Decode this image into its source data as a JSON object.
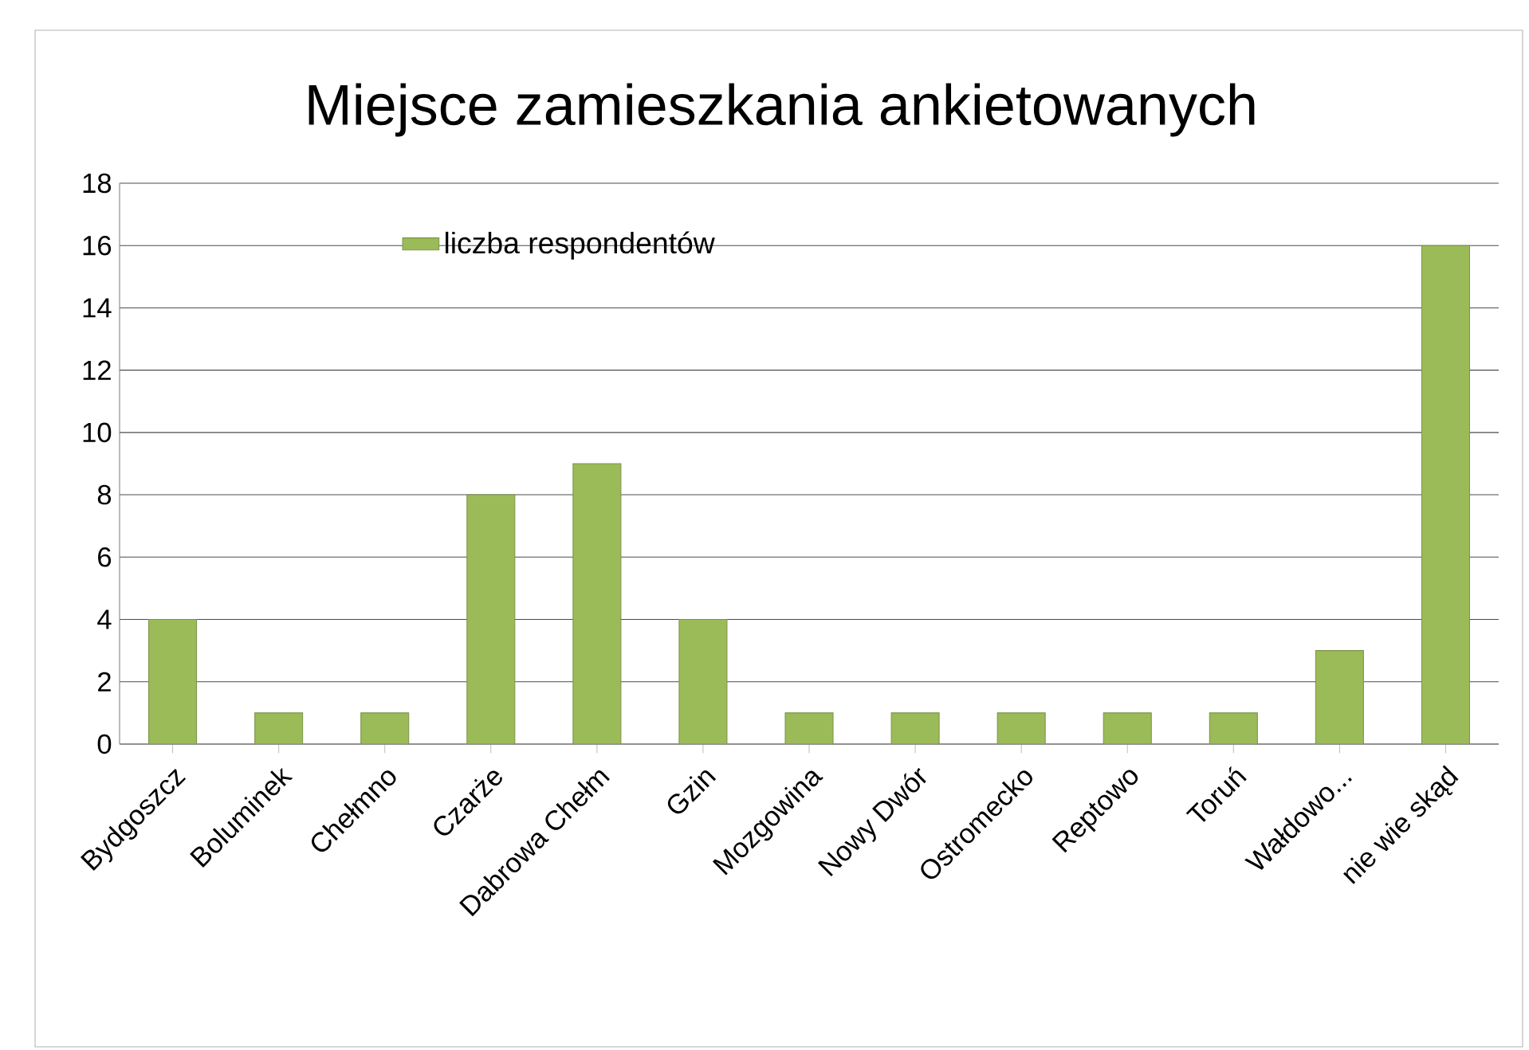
{
  "chart_data": {
    "type": "bar",
    "title": "Miejsce zamieszkania ankietowanych",
    "categories": [
      "Bydgoszcz",
      "Boluminek",
      "Chełmno",
      "Czarże",
      "Dabrowa Chełm",
      "Gzin",
      "Mozgowina",
      "Nowy Dwór",
      "Ostromecko",
      "Reptowo",
      "Toruń",
      "Wałdowo...",
      "nie wie skąd"
    ],
    "series": [
      {
        "name": "liczba respondentów",
        "color": "#9bbb59",
        "values": [
          4,
          1,
          1,
          8,
          9,
          4,
          1,
          1,
          1,
          1,
          1,
          3,
          16
        ]
      }
    ],
    "ylim": [
      0,
      18
    ],
    "yticks": [
      0,
      2,
      4,
      6,
      8,
      10,
      12,
      14,
      16,
      18
    ],
    "grid": "y",
    "legend": "top left"
  }
}
